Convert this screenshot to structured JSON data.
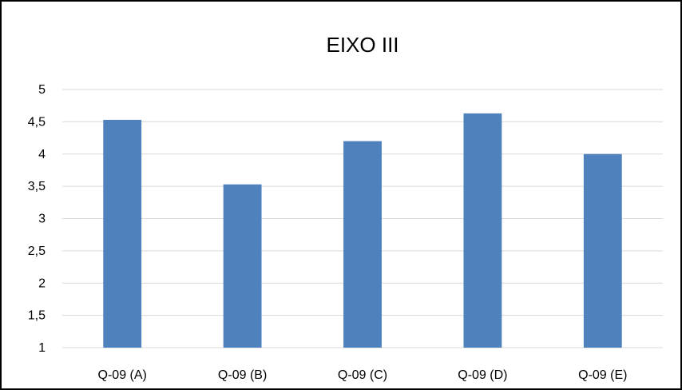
{
  "chart_data": {
    "type": "bar",
    "title": "EIXO III",
    "xlabel": "",
    "ylabel": "",
    "categories": [
      "Q-09 (A)",
      "Q-09 (B)",
      "Q-09 (C)",
      "Q-09 (D)",
      "Q-09 (E)"
    ],
    "values": [
      4.53,
      3.53,
      4.2,
      4.63,
      4.0
    ],
    "ylim": [
      1,
      5
    ],
    "yticks": [
      "1",
      "1,5",
      "2",
      "2,5",
      "3",
      "3,5",
      "4",
      "4,5",
      "5"
    ],
    "ytick_values": [
      1,
      1.5,
      2,
      2.5,
      3,
      3.5,
      4,
      4.5,
      5
    ],
    "grid": true,
    "legend": "none",
    "colors": {
      "bar": "#4f81bd",
      "grid": "#d9d9d9",
      "text": "#000000",
      "frame": "#000000"
    }
  }
}
